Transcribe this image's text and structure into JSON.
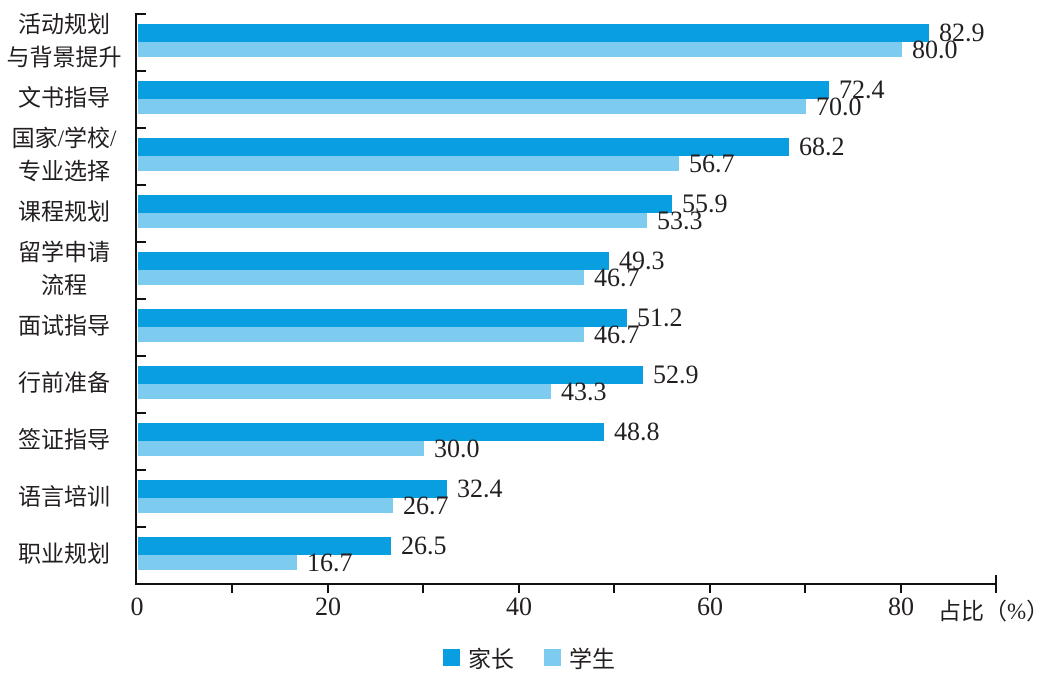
{
  "chart_data": {
    "type": "bar",
    "orientation": "horizontal",
    "title": "",
    "xlabel": "占比（%）",
    "ylabel": "",
    "xlim": [
      0,
      90
    ],
    "x_tick_step": 10,
    "x_labeled_ticks": [
      0,
      20,
      40,
      60,
      80
    ],
    "grid": false,
    "legend_position": "bottom",
    "value_labels": true,
    "categories": [
      "活动规划\n与背景提升",
      "文书指导",
      "国家/学校/\n专业选择",
      "课程规划",
      "留学申请\n流程",
      "面试指导",
      "行前准备",
      "签证指导",
      "语言培训",
      "职业规划"
    ],
    "series": [
      {
        "name": "家长",
        "color": "#089ee0",
        "values": [
          82.9,
          72.4,
          68.2,
          55.9,
          49.3,
          51.2,
          52.9,
          48.8,
          32.4,
          26.5
        ]
      },
      {
        "name": "学生",
        "color": "#7ecbf0",
        "values": [
          80.0,
          70.0,
          56.7,
          53.3,
          46.7,
          46.7,
          43.3,
          30.0,
          26.7,
          16.7
        ]
      }
    ],
    "colors": {
      "parent_bar": "#089ee0",
      "student_bar": "#7ecbf0",
      "axis": "#111111",
      "text": "#231f20"
    }
  }
}
